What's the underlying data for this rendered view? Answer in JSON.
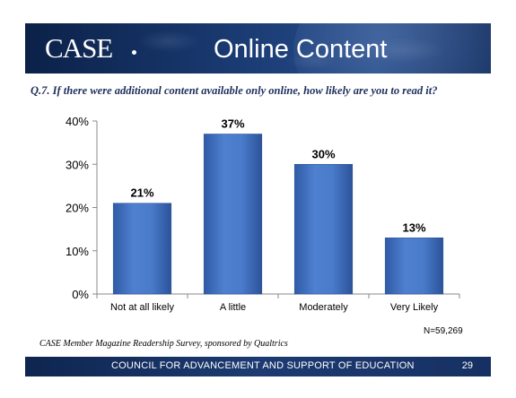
{
  "header": {
    "logo": "CASE",
    "title": "Online Content"
  },
  "question": "Q.7. If there were additional content available only online, how likely are you to read it?",
  "chart_data": {
    "type": "bar",
    "categories": [
      "Not at all likely",
      "A little",
      "Moderately",
      "Very Likely"
    ],
    "values": [
      21,
      37,
      30,
      13
    ],
    "value_labels": [
      "21%",
      "37%",
      "30%",
      "13%"
    ],
    "ylim": [
      0,
      40
    ],
    "yticks": [
      0,
      10,
      20,
      30,
      40
    ],
    "ytick_labels": [
      "0%",
      "10%",
      "20%",
      "30%",
      "40%"
    ],
    "grid": false,
    "bar_color": "#3f6fbf",
    "title": "",
    "xlabel": "",
    "ylabel": ""
  },
  "sample_note": "N=59,269",
  "source": "CASE Member Magazine Readership Survey, sponsored by Qualtrics",
  "footer": {
    "org": "COUNCIL FOR ADVANCEMENT AND SUPPORT OF EDUCATION",
    "page": "29"
  }
}
